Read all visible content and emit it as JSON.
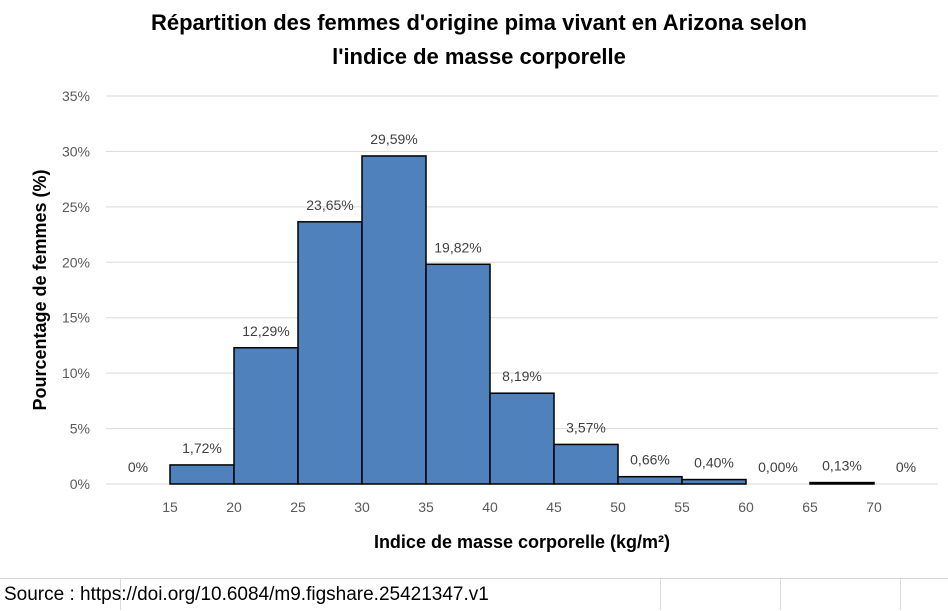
{
  "chart_data": {
    "type": "bar",
    "title_lines": [
      "Répartition des femmes d'origine pima vivant en Arizona selon",
      "l'indice de masse corporelle"
    ],
    "xlabel": "Indice de masse corporelle (kg/m²)",
    "ylabel": "Pourcentage de femmes (%)",
    "y_ticks": [
      "0%",
      "5%",
      "10%",
      "15%",
      "20%",
      "25%",
      "30%",
      "35%"
    ],
    "ylim": [
      0,
      35
    ],
    "x_ticks": [
      "15",
      "20",
      "25",
      "30",
      "35",
      "40",
      "45",
      "50",
      "55",
      "60",
      "65",
      "70"
    ],
    "bins": [
      {
        "from": 10,
        "to": 15,
        "value": 0,
        "label": "0%"
      },
      {
        "from": 15,
        "to": 20,
        "value": 1.72,
        "label": "1,72%"
      },
      {
        "from": 20,
        "to": 25,
        "value": 12.29,
        "label": "12,29%"
      },
      {
        "from": 25,
        "to": 30,
        "value": 23.65,
        "label": "23,65%"
      },
      {
        "from": 30,
        "to": 35,
        "value": 29.59,
        "label": "29,59%"
      },
      {
        "from": 35,
        "to": 40,
        "value": 19.82,
        "label": "19,82%"
      },
      {
        "from": 40,
        "to": 45,
        "value": 8.19,
        "label": "8,19%"
      },
      {
        "from": 45,
        "to": 50,
        "value": 3.57,
        "label": "3,57%"
      },
      {
        "from": 50,
        "to": 55,
        "value": 0.66,
        "label": "0,66%"
      },
      {
        "from": 55,
        "to": 60,
        "value": 0.4,
        "label": "0,40%"
      },
      {
        "from": 60,
        "to": 65,
        "value": 0.0,
        "label": "0,00%"
      },
      {
        "from": 65,
        "to": 70,
        "value": 0.13,
        "label": "0,13%"
      },
      {
        "from": 70,
        "to": 75,
        "value": 0,
        "label": "0%"
      }
    ],
    "bar_color": "#4f81bd",
    "bar_edge_color": "#000000",
    "grid": true,
    "legend": "none"
  },
  "footer": {
    "source": "Source : https://doi.org/10.6084/m9.figshare.25421347.v1"
  }
}
